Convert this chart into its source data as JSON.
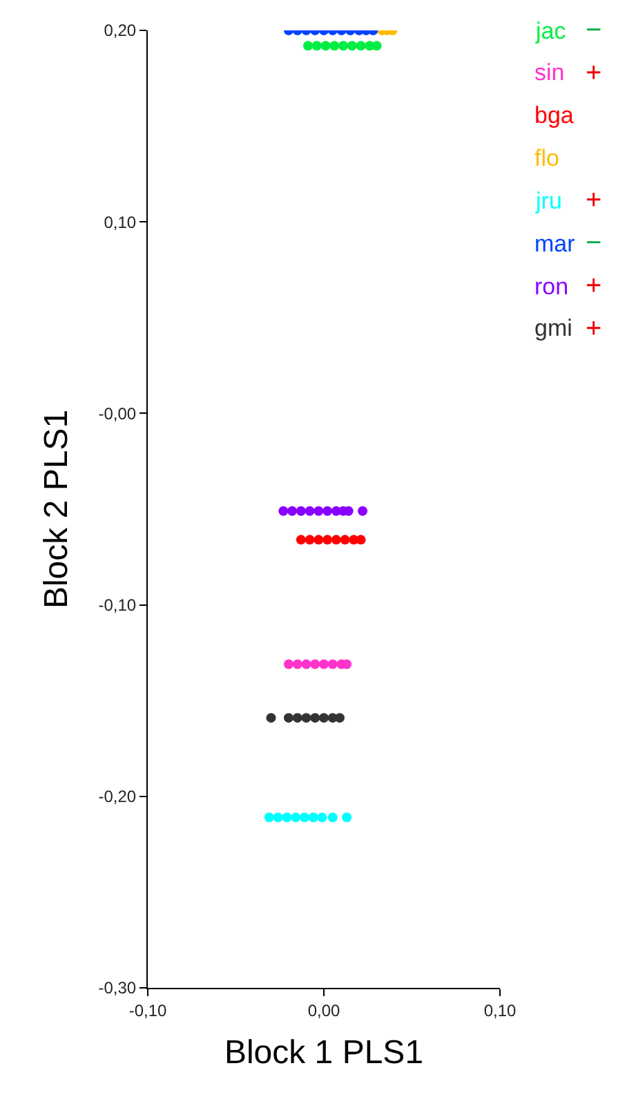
{
  "chart_data": {
    "type": "scatter",
    "xlabel": "Block 1 PLS1",
    "ylabel": "Block 2 PLS1",
    "xlim": [
      -0.1,
      0.1
    ],
    "ylim": [
      -0.3,
      0.2
    ],
    "xticks": [
      {
        "value": -0.1,
        "label": "-0,10"
      },
      {
        "value": 0,
        "label": "0,00"
      },
      {
        "value": 0.1,
        "label": "0,10"
      }
    ],
    "yticks": [
      {
        "value": -0.3,
        "label": "-0,30"
      },
      {
        "value": -0.2,
        "label": "-0,20"
      },
      {
        "value": -0.1,
        "label": "-0,10"
      },
      {
        "value": 0,
        "label": "-0,00"
      },
      {
        "value": 0.1,
        "label": "0,10"
      },
      {
        "value": 0.2,
        "label": "0,20"
      }
    ],
    "legend": "right",
    "marker": "circle",
    "series": [
      {
        "name": "jac",
        "color": "#00ee44",
        "x": [
          -0.009,
          -0.004,
          0.001,
          0.006,
          0.011,
          0.016,
          0.021,
          0.026,
          0.03
        ],
        "values": [
          0.192,
          0.192,
          0.192,
          0.192,
          0.192,
          0.192,
          0.192,
          0.192,
          0.192
        ]
      },
      {
        "name": "sin",
        "color": "#ff33cc",
        "x": [
          -0.02,
          -0.015,
          -0.01,
          -0.005,
          0.0,
          0.005,
          0.01,
          0.013
        ],
        "values": [
          -0.131,
          -0.131,
          -0.131,
          -0.131,
          -0.131,
          -0.131,
          -0.131,
          -0.131
        ]
      },
      {
        "name": "bga",
        "color": "#ff0000",
        "x": [
          -0.013,
          -0.008,
          -0.003,
          0.002,
          0.007,
          0.012,
          0.017,
          0.021
        ],
        "values": [
          -0.066,
          -0.066,
          -0.066,
          -0.066,
          -0.066,
          -0.066,
          -0.066,
          -0.066
        ]
      },
      {
        "name": "flo",
        "color": "#ffbb00",
        "x": [
          0.033,
          0.036,
          0.039
        ],
        "values": [
          0.2,
          0.2,
          0.2
        ]
      },
      {
        "name": "jru",
        "color": "#00ffff",
        "x": [
          -0.031,
          -0.026,
          -0.021,
          -0.016,
          -0.011,
          -0.006,
          -0.001,
          0.005,
          0.013
        ],
        "values": [
          -0.211,
          -0.211,
          -0.211,
          -0.211,
          -0.211,
          -0.211,
          -0.211,
          -0.211,
          -0.211
        ]
      },
      {
        "name": "mar",
        "color": "#0044ff",
        "x": [
          -0.02,
          -0.015,
          -0.01,
          -0.005,
          0.0,
          0.005,
          0.01,
          0.015,
          0.02,
          0.024,
          0.028
        ],
        "values": [
          0.2,
          0.2,
          0.2,
          0.2,
          0.2,
          0.2,
          0.2,
          0.2,
          0.2,
          0.2,
          0.2
        ]
      },
      {
        "name": "ron",
        "color": "#8800ff",
        "x": [
          -0.023,
          -0.018,
          -0.013,
          -0.008,
          -0.003,
          0.002,
          0.007,
          0.011,
          0.014,
          0.022
        ],
        "values": [
          -0.051,
          -0.051,
          -0.051,
          -0.051,
          -0.051,
          -0.051,
          -0.051,
          -0.051,
          -0.051,
          -0.051
        ]
      },
      {
        "name": "gmi",
        "color": "#333333",
        "x": [
          -0.03,
          -0.02,
          -0.015,
          -0.01,
          -0.005,
          0.0,
          0.005,
          0.009
        ],
        "values": [
          -0.159,
          -0.159,
          -0.159,
          -0.159,
          -0.159,
          -0.159,
          -0.159,
          -0.159
        ]
      }
    ],
    "annotations": [
      "−",
      "+",
      null,
      null,
      "+",
      "−",
      "+",
      "+"
    ]
  }
}
